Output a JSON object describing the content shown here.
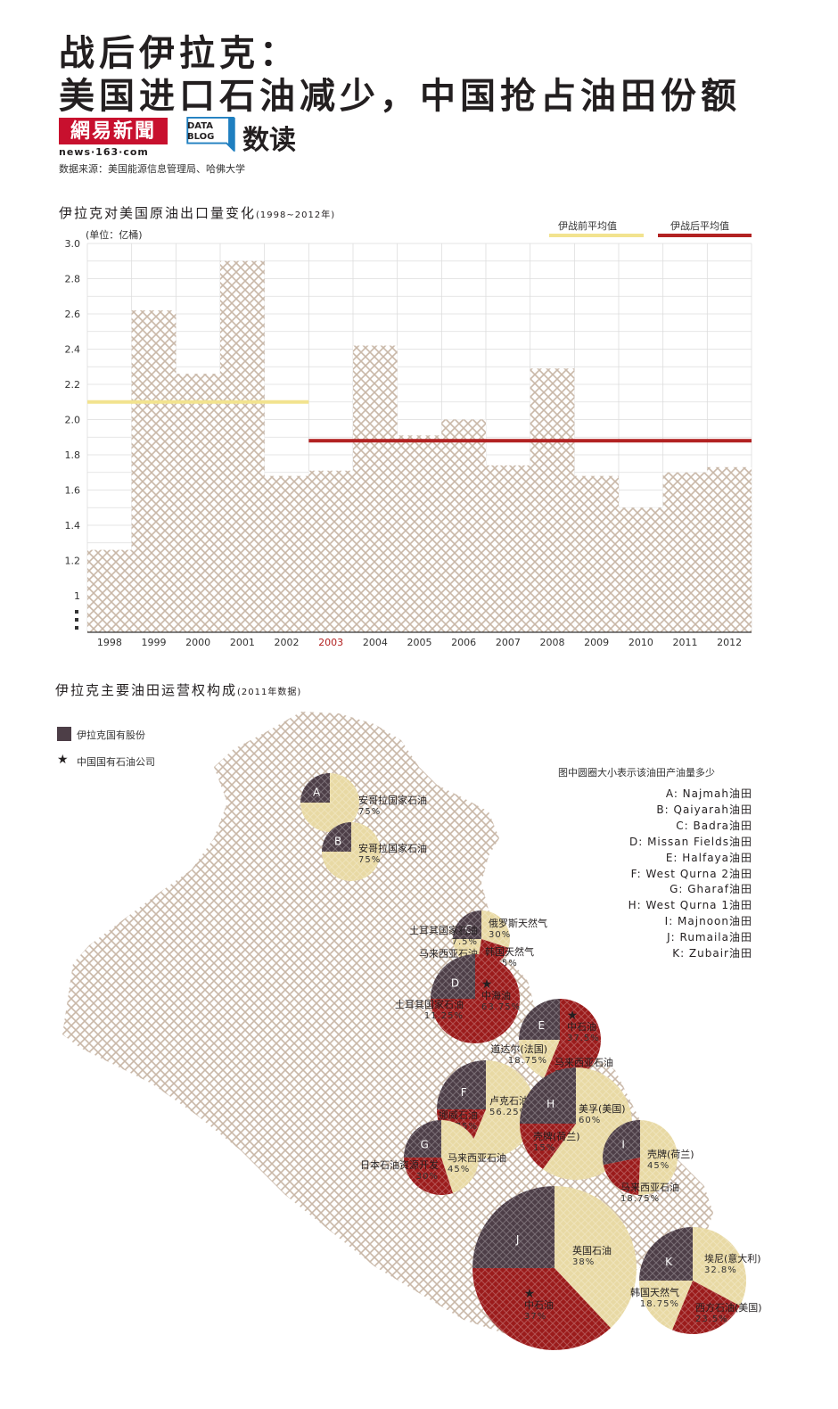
{
  "header": {
    "title_line1": "战后伊拉克：",
    "title_line2": "美国进口石油减少，中国抢占油田份额",
    "logo_text": "網易新聞",
    "logo_url": "news·163·com",
    "datablog_line1": "DATA",
    "datablog_line2": "BLOG",
    "datablog_label": "数读",
    "source": "数据来源：美国能源信息管理局、哈佛大学"
  },
  "colors": {
    "hatch": "#c9b8a8",
    "pre_war": "#f2e38f",
    "post_war": "#b22222",
    "iraq_state": "#4d3e47",
    "foreign": "#e8d9a4",
    "chinese": "#9b1b1b"
  },
  "chart_data": [
    {
      "type": "bar",
      "title": "伊拉克对美国原油出口量变化",
      "title_range": "(1998~2012年)",
      "unit": "(单位：亿桶)",
      "categories": [
        "1998",
        "1999",
        "2000",
        "2001",
        "2002",
        "2003",
        "2004",
        "2005",
        "2006",
        "2007",
        "2008",
        "2009",
        "2010",
        "2011",
        "2012"
      ],
      "highlight_category": "2003",
      "values": [
        1.26,
        2.62,
        2.26,
        2.9,
        1.68,
        1.71,
        2.42,
        1.91,
        2.0,
        1.74,
        2.29,
        1.68,
        1.5,
        1.7,
        1.73
      ],
      "ylim": [
        1.0,
        3.0
      ],
      "yticks": [
        "3.0",
        "2.8",
        "2.6",
        "2.4",
        "2.2",
        "2.0",
        "1.8",
        "1.6",
        "1.4",
        "1.2",
        "1"
      ],
      "axis_break": true,
      "grid": true,
      "legend_placement": "top-right",
      "reference_lines": [
        {
          "name": "伊战前平均值",
          "value": 2.1,
          "from": "1998",
          "to": "2002",
          "color": "#f2e38f"
        },
        {
          "name": "伊战后平均值",
          "value": 1.88,
          "from": "2003",
          "to": "2012",
          "color": "#b22222"
        }
      ]
    },
    {
      "type": "pie",
      "title": "伊拉克主要油田运营权构成",
      "title_range": "(2011年数据)",
      "legend": {
        "iraq_state": "伊拉克国有股份",
        "china_state": "中国国有石油公司",
        "size_note": "图中圆圈大小表示该油田产油量多少"
      },
      "fields": [
        {
          "id": "A",
          "name": "Najmah油田",
          "slices": [
            {
              "owner": "iraq",
              "value": 25
            },
            {
              "owner": "foreign",
              "label": "安哥拉国家石油",
              "pct": "75%",
              "value": 75
            }
          ]
        },
        {
          "id": "B",
          "name": "Qaiyarah油田",
          "slices": [
            {
              "owner": "iraq",
              "value": 25
            },
            {
              "owner": "foreign",
              "label": "安哥拉国家石油",
              "pct": "75%",
              "value": 75
            }
          ]
        },
        {
          "id": "C",
          "name": "Badra油田",
          "slices": [
            {
              "owner": "iraq",
              "value": 25
            },
            {
              "owner": "foreign",
              "label": "俄罗斯天然气",
              "pct": "30%",
              "value": 30
            },
            {
              "owner": "china",
              "label": "韩国天然气",
              "pct": "22.5%",
              "value": 22.5
            },
            {
              "owner": "foreign",
              "label": "马来西亚石油",
              "pct": "15%",
              "value": 15
            },
            {
              "owner": "foreign",
              "label": "土耳其国家石油",
              "pct": "7.5%",
              "value": 7.5
            }
          ]
        },
        {
          "id": "D",
          "name": "Missan Fields油田",
          "slices": [
            {
              "owner": "iraq",
              "value": 25
            },
            {
              "owner": "china_star",
              "label": "中海油",
              "pct": "63.75%",
              "value": 63.75
            },
            {
              "owner": "china",
              "label": "土耳其国家石油",
              "pct": "11.25%",
              "value": 11.25
            }
          ]
        },
        {
          "id": "E",
          "name": "Halfaya油田",
          "slices": [
            {
              "owner": "iraq",
              "value": 25
            },
            {
              "owner": "china_star",
              "label": "中石油",
              "pct": "37.5%",
              "value": 37.5
            },
            {
              "owner": "china",
              "label": "马来西亚石油",
              "pct": "18.75%",
              "value": 18.75
            },
            {
              "owner": "foreign",
              "label": "道达尔(法国)",
              "pct": "18.75%",
              "value": 18.75
            }
          ]
        },
        {
          "id": "F",
          "name": "West Qurna 2油田",
          "slices": [
            {
              "owner": "iraq",
              "value": 25
            },
            {
              "owner": "foreign",
              "label": "卢克石油(俄罗斯)",
              "pct": "56.25%",
              "value": 56.25
            },
            {
              "owner": "china",
              "label": "挪威石油",
              "pct": "18.75%",
              "value": 18.75
            }
          ]
        },
        {
          "id": "G",
          "name": "Gharaf油田",
          "slices": [
            {
              "owner": "iraq",
              "value": 25
            },
            {
              "owner": "foreign",
              "label": "马来西亚石油",
              "pct": "45%",
              "value": 45
            },
            {
              "owner": "china",
              "label": "日本石油资源开发",
              "pct": "30%",
              "value": 30
            }
          ]
        },
        {
          "id": "H",
          "name": "West Qurna 1油田",
          "slices": [
            {
              "owner": "iraq",
              "value": 25
            },
            {
              "owner": "foreign",
              "label": "美孚(美国)",
              "pct": "60%",
              "value": 60
            },
            {
              "owner": "china",
              "label": "壳牌(荷兰)",
              "pct": "15%",
              "value": 15
            }
          ]
        },
        {
          "id": "I",
          "name": "Majnoon油田",
          "slices": [
            {
              "owner": "iraq",
              "value": 25
            },
            {
              "owner": "foreign",
              "label": "壳牌(荷兰)",
              "pct": "45%",
              "value": 45
            },
            {
              "owner": "china",
              "label": "马来西亚石油",
              "pct": "18.75%",
              "value": 18.75
            }
          ]
        },
        {
          "id": "J",
          "name": "Rumaila油田",
          "slices": [
            {
              "owner": "iraq",
              "value": 25
            },
            {
              "owner": "foreign",
              "label": "英国石油",
              "pct": "38%",
              "value": 38
            },
            {
              "owner": "china_star",
              "label": "中石油",
              "pct": "37%",
              "value": 37
            }
          ]
        },
        {
          "id": "K",
          "name": "Zubair油田",
          "slices": [
            {
              "owner": "iraq",
              "value": 25
            },
            {
              "owner": "foreign",
              "label": "埃尼(意大利)",
              "pct": "32.8%",
              "value": 32.8
            },
            {
              "owner": "china",
              "label": "西方石油(美国)",
              "pct": "23.5%",
              "value": 23.5
            },
            {
              "owner": "foreign",
              "label": "韩国天然气",
              "pct": "18.75%",
              "value": 18.75
            }
          ]
        }
      ]
    }
  ],
  "key_lines": [
    "A: Najmah油田",
    "B: Qaiyarah油田",
    "C: Badra油田",
    "D: Missan Fields油田",
    "E: Halfaya油田",
    "F: West Qurna 2油田",
    "G: Gharaf油田",
    "H: West Qurna 1油田",
    "I: Majnoon油田",
    "J: Rumaila油田",
    "K: Zubair油田"
  ]
}
